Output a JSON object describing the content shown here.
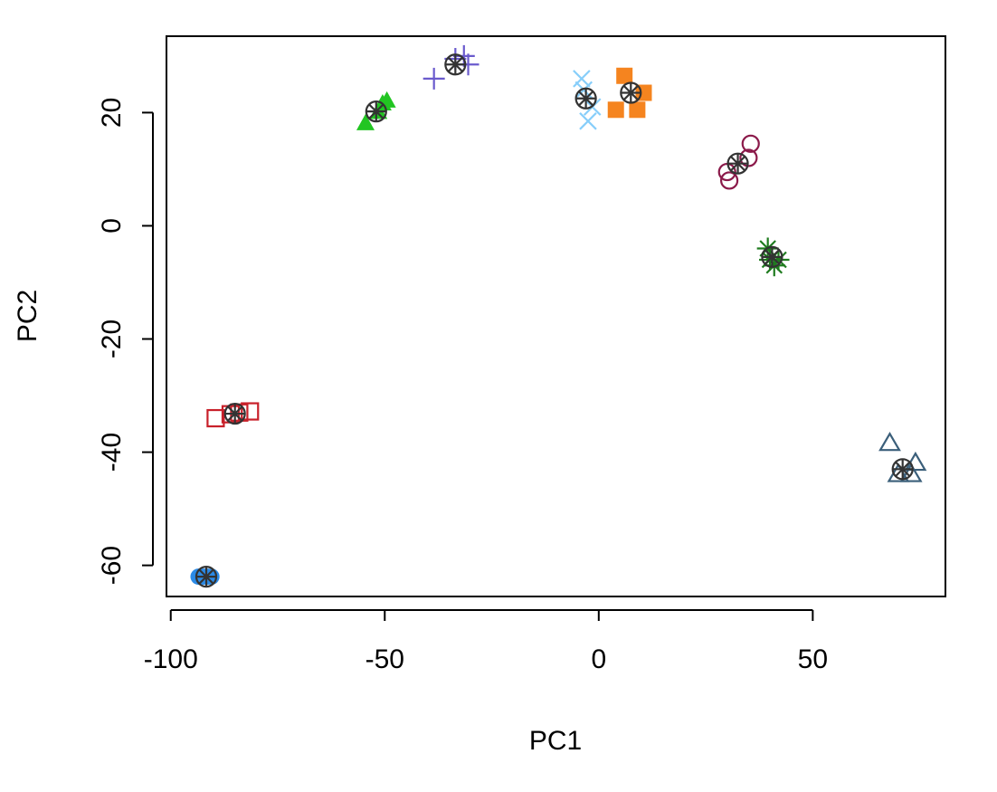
{
  "chart_data": {
    "type": "scatter",
    "title": "",
    "xlabel": "PC1",
    "ylabel": "PC2",
    "xlim": [
      -101,
      81
    ],
    "ylim": [
      -65.5,
      33.5
    ],
    "xticks": [
      -100,
      -50,
      0,
      50
    ],
    "yticks": [
      -60,
      -40,
      -20,
      0,
      20
    ],
    "grid": false,
    "legend": "none",
    "centroid_style": {
      "marker": "circle-asterisk",
      "color": "#333333"
    },
    "series": [
      {
        "marker": "filled-circle",
        "color": "#2b8ae6",
        "points": [
          [
            -93.5,
            -62
          ],
          [
            -92.5,
            -62
          ],
          [
            -91.5,
            -62
          ],
          [
            -90.5,
            -62
          ]
        ],
        "centroid": [
          -91.7,
          -62
        ]
      },
      {
        "marker": "open-square",
        "color": "#c8202a",
        "points": [
          [
            -89.5,
            -34
          ],
          [
            -86,
            -33.3
          ],
          [
            -84,
            -33
          ],
          [
            -81.5,
            -32.8
          ]
        ],
        "centroid": [
          -85,
          -33.2
        ]
      },
      {
        "marker": "filled-triangle",
        "color": "#22c522",
        "points": [
          [
            -54.5,
            18
          ],
          [
            -51.5,
            20
          ],
          [
            -50.5,
            21.5
          ],
          [
            -49.5,
            22
          ]
        ],
        "centroid": [
          -52,
          20.2
        ]
      },
      {
        "marker": "plus",
        "color": "#6a5acd",
        "points": [
          [
            -38.5,
            26
          ],
          [
            -33.5,
            29.5
          ],
          [
            -31.5,
            30
          ],
          [
            -30.5,
            28.5
          ]
        ],
        "centroid": [
          -33.5,
          28.5
        ]
      },
      {
        "marker": "cross",
        "color": "#87cefa",
        "points": [
          [
            -4,
            26
          ],
          [
            -3.5,
            24
          ],
          [
            -2.5,
            18.5
          ],
          [
            -1.5,
            21
          ]
        ],
        "centroid": [
          -3,
          22.5
        ]
      },
      {
        "marker": "filled-square",
        "color": "#f5841f",
        "points": [
          [
            4,
            20.5
          ],
          [
            6,
            26.5
          ],
          [
            9,
            20.5
          ],
          [
            10.5,
            23.5
          ]
        ],
        "centroid": [
          7.5,
          23.5
        ]
      },
      {
        "marker": "open-circle",
        "color": "#8b1a4a",
        "points": [
          [
            30,
            9.5
          ],
          [
            30.5,
            8
          ],
          [
            35,
            12
          ],
          [
            35.5,
            14.5
          ]
        ],
        "centroid": [
          32.5,
          11
        ]
      },
      {
        "marker": "asterisk",
        "color": "#1e7b1e",
        "points": [
          [
            39.5,
            -4
          ],
          [
            40,
            -6
          ],
          [
            41,
            -7
          ],
          [
            42,
            -6
          ]
        ],
        "centroid": [
          40.5,
          -5.5
        ]
      },
      {
        "marker": "open-triangle",
        "color": "#3b5f7a",
        "points": [
          [
            68,
            -38.5
          ],
          [
            70,
            -44
          ],
          [
            73,
            -44
          ],
          [
            74,
            -42
          ]
        ],
        "centroid": [
          71,
          -43
        ]
      }
    ]
  }
}
